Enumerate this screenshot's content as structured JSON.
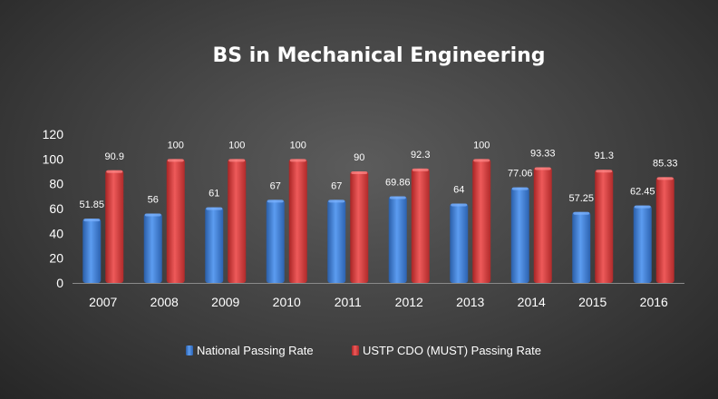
{
  "chart_data": {
    "type": "bar",
    "title": "BS in Mechanical  Engineering",
    "xlabel": "",
    "ylabel": "",
    "categories": [
      "2007",
      "2008",
      "2009",
      "2010",
      "2011",
      "2012",
      "2013",
      "2014",
      "2015",
      "2016"
    ],
    "series": [
      {
        "name": "National Passing Rate",
        "color": "#3f7fd6",
        "values": [
          51.85,
          56,
          61,
          67,
          67,
          69.86,
          64,
          77.06,
          57.25,
          62.45
        ],
        "labels": [
          "51.85",
          "56",
          "61",
          "67",
          "67",
          "69.86",
          "64",
          "77.06",
          "57.25",
          "62.45"
        ]
      },
      {
        "name": "USTP CDO (MUST) Passing Rate",
        "color": "#d63a3a",
        "values": [
          90.9,
          100,
          100,
          100,
          90,
          92.3,
          100,
          93.33,
          91.3,
          85.33
        ],
        "labels": [
          "90.9",
          "100",
          "100",
          "100",
          "90",
          "92.3",
          "100",
          "93.33",
          "91.3",
          "85.33"
        ]
      }
    ],
    "ylim": [
      0,
      120
    ],
    "yticks": [
      "0",
      "20",
      "40",
      "60",
      "80",
      "100",
      "120"
    ],
    "grid": false,
    "legend_position": "bottom"
  }
}
